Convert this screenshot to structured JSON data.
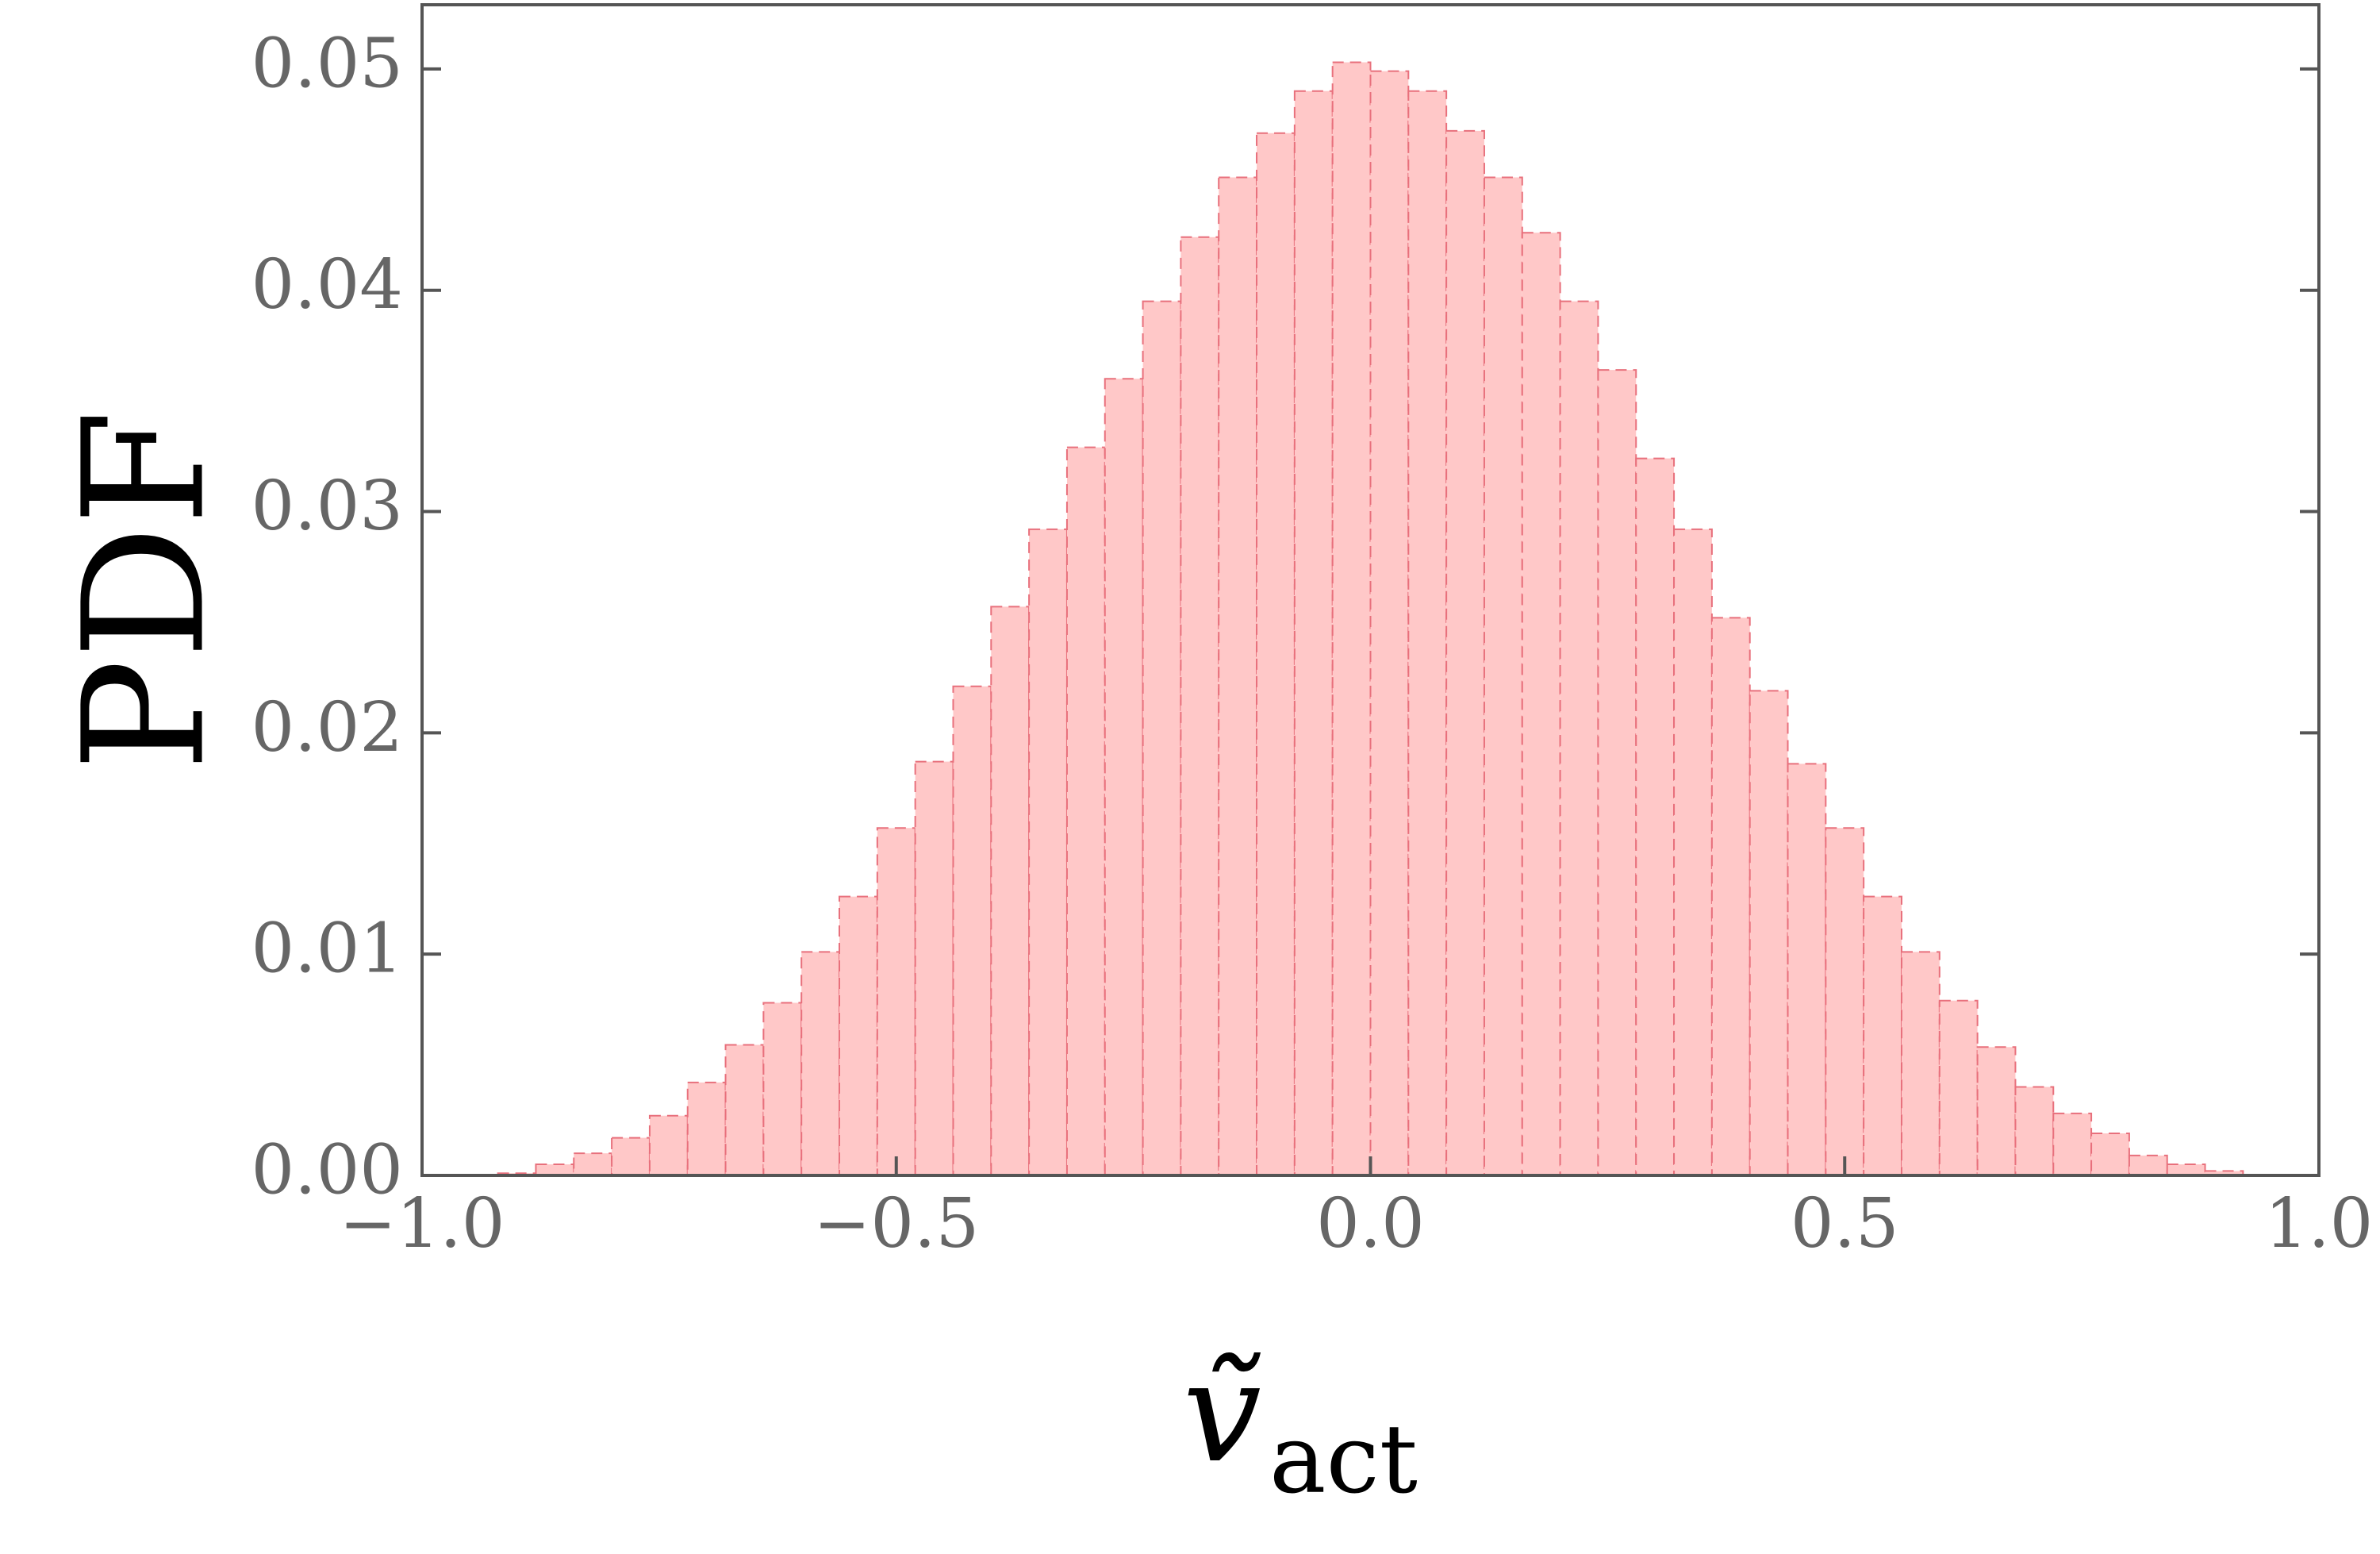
{
  "chart_data": {
    "type": "histogram",
    "ylabel": "PDF",
    "xlabel": "ṽ",
    "xlabel_subscript": "act",
    "bins": [
      -0.92,
      -0.88,
      -0.84,
      -0.8,
      -0.76,
      -0.72,
      -0.68,
      -0.64,
      -0.6,
      -0.56,
      -0.52,
      -0.48,
      -0.44,
      -0.4,
      -0.36,
      -0.32,
      -0.28,
      -0.24,
      -0.2,
      -0.16,
      -0.12,
      -0.08,
      -0.04,
      0.0,
      0.04,
      0.08,
      0.12,
      0.16,
      0.2,
      0.24,
      0.28,
      0.32,
      0.36,
      0.4,
      0.44,
      0.48,
      0.52,
      0.56,
      0.6,
      0.64,
      0.68,
      0.72,
      0.76,
      0.8,
      0.84,
      0.88,
      0.92
    ],
    "values": [
      0.0001,
      0.0005,
      0.001,
      0.0017,
      0.0027,
      0.0042,
      0.0059,
      0.0078,
      0.0101,
      0.0126,
      0.0157,
      0.0187,
      0.0221,
      0.0257,
      0.0292,
      0.0329,
      0.036,
      0.0395,
      0.0424,
      0.0451,
      0.0471,
      0.049,
      0.0503,
      0.0499,
      0.049,
      0.0472,
      0.0451,
      0.0426,
      0.0395,
      0.0364,
      0.0324,
      0.0292,
      0.0252,
      0.0219,
      0.0186,
      0.0157,
      0.0126,
      0.0101,
      0.0079,
      0.0058,
      0.004,
      0.0028,
      0.0019,
      0.0009,
      0.0005,
      0.0002
    ],
    "color": "#ffc8c8",
    "edgecolor": "#e8707c",
    "xlim": [
      -1.0,
      1.0
    ],
    "ylim": [
      0,
      0.0529
    ],
    "xticks": [
      {
        "value": -1.0,
        "label": "−1.0"
      },
      {
        "value": -0.5,
        "label": "−0.5"
      },
      {
        "value": 0.0,
        "label": "0.0"
      },
      0.5,
      {
        "value": 1.0,
        "label": "1.0"
      }
    ],
    "yticks": [
      {
        "value": 0,
        "label": "0.00"
      },
      0.01,
      0.02,
      0.03,
      0.04,
      0.05
    ]
  }
}
